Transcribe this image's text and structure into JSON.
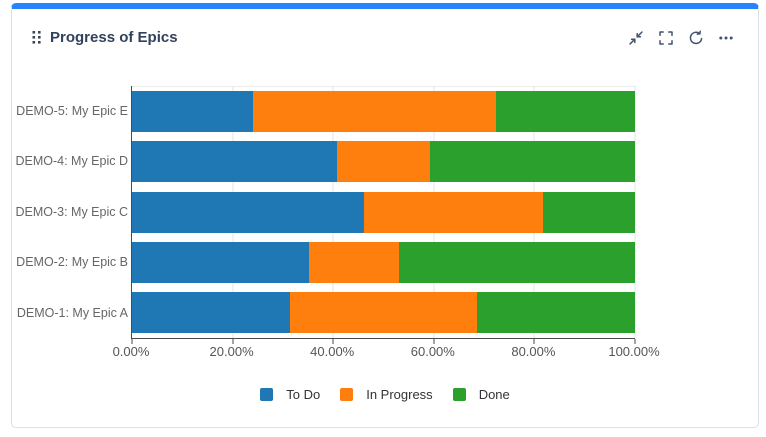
{
  "card": {
    "title": "Progress of Epics",
    "accent_color": "#2684ff",
    "drag_handle_icon": "drag-handle-icon",
    "toolbar_icons": [
      "collapse-icon",
      "fullscreen-icon",
      "refresh-icon",
      "more-icon"
    ]
  },
  "chart_data": {
    "type": "bar",
    "orientation": "horizontal",
    "stacked": true,
    "title": "Progress of Epics",
    "categories": [
      "DEMO-5: My Epic E",
      "DEMO-4: My Epic D",
      "DEMO-3: My Epic C",
      "DEMO-2: My Epic B",
      "DEMO-1: My Epic A"
    ],
    "series": [
      {
        "name": "To Do",
        "color": "#1f77b4",
        "values": [
          24.1,
          40.7,
          46.2,
          35.1,
          31.5
        ]
      },
      {
        "name": "In Progress",
        "color": "#ff7f0e",
        "values": [
          48.2,
          18.5,
          35.6,
          17.9,
          37.0
        ]
      },
      {
        "name": "Done",
        "color": "#2ca02c",
        "values": [
          27.7,
          40.8,
          18.2,
          47.0,
          31.5
        ]
      }
    ],
    "x_ticks": [
      "0.00%",
      "20.00%",
      "40.00%",
      "60.00%",
      "80.00%",
      "100.00%"
    ],
    "xlim": [
      0,
      100
    ],
    "unit": "percent",
    "grid": true,
    "legend_position": "bottom"
  }
}
